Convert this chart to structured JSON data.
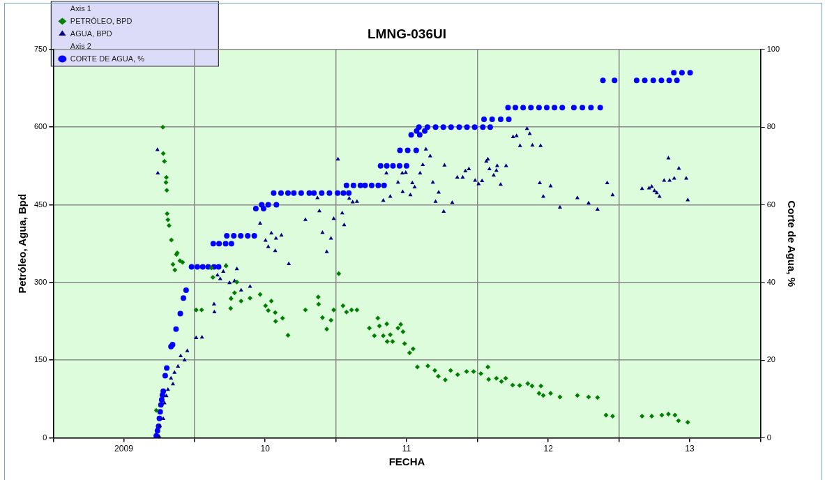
{
  "chart_data": {
    "type": "scatter",
    "title": "LMNG-036UI",
    "xlabel": "FECHA",
    "ylabel": "Petróleo, Agua, Bpd",
    "y2label": "Corte de Agua, %",
    "legend": "top left",
    "legend_title": [
      "Axis 1",
      "Axis 2"
    ],
    "grid": true,
    "xlim": [
      "2009-01-01",
      "2014-01-01"
    ],
    "xticks": [
      {
        "value": "2009-01-01",
        "label": null
      },
      {
        "value": "2009-07-02",
        "label": "2009"
      },
      {
        "value": "2010-01-01",
        "label": null
      },
      {
        "value": "2010-07-02",
        "label": "10"
      },
      {
        "value": "2011-01-01",
        "label": null
      },
      {
        "value": "2011-07-02",
        "label": "11"
      },
      {
        "value": "2012-01-01",
        "label": null
      },
      {
        "value": "2012-07-02",
        "label": "12"
      },
      {
        "value": "2013-01-01",
        "label": null
      },
      {
        "value": "2013-07-02",
        "label": "13"
      },
      {
        "value": "2014-01-01",
        "label": null
      }
    ],
    "ylim": [
      0,
      750
    ],
    "yticks": [
      0,
      150,
      300,
      450,
      600,
      750
    ],
    "y2lim": [
      0,
      100
    ],
    "y2ticks": [
      0,
      20,
      40,
      60,
      80,
      100
    ],
    "series": [
      {
        "name": "PETRÓLEO, BPD",
        "axis": "y",
        "marker": "diamond",
        "color": "#008000",
        "x": [
          "2009-09-24",
          "2009-10-11",
          "2009-10-12",
          "2009-10-15",
          "2009-10-19",
          "2009-10-20",
          "2009-10-21",
          "2009-10-22",
          "2009-10-24",
          "2009-10-27",
          "2009-11-02",
          "2009-11-06",
          "2009-11-11",
          "2009-11-15",
          "2009-11-17",
          "2009-11-24",
          "2009-12-01",
          "2010-01-05",
          "2010-01-19",
          "2010-02-13",
          "2010-02-17",
          "2010-03-23",
          "2010-04-04",
          "2010-04-05",
          "2010-04-14",
          "2010-04-20",
          "2010-05-01",
          "2010-05-24",
          "2010-06-19",
          "2010-07-03",
          "2010-07-10",
          "2010-07-18",
          "2010-07-28",
          "2010-07-29",
          "2010-08-16",
          "2010-08-30",
          "2010-10-14",
          "2010-11-16",
          "2010-11-17",
          "2010-11-27",
          "2010-12-08",
          "2010-12-19",
          "2010-12-26",
          "2011-01-08",
          "2011-01-19",
          "2011-01-28",
          "2011-02-10",
          "2011-02-24",
          "2011-03-28",
          "2011-04-10",
          "2011-04-19",
          "2011-04-23",
          "2011-05-03",
          "2011-05-12",
          "2011-05-13",
          "2011-05-21",
          "2011-05-27",
          "2011-06-10",
          "2011-06-17",
          "2011-06-23",
          "2011-06-27",
          "2011-07-10",
          "2011-07-19",
          "2011-07-30",
          "2011-08-26",
          "2011-09-13",
          "2011-09-22",
          "2011-10-10",
          "2011-10-24",
          "2011-11-11",
          "2011-12-04",
          "2011-12-22",
          "2012-01-10",
          "2012-01-28",
          "2012-01-30",
          "2012-02-19",
          "2012-03-03",
          "2012-03-14",
          "2012-04-01",
          "2012-04-19",
          "2012-05-10",
          "2012-05-21",
          "2012-06-08",
          "2012-06-13",
          "2012-06-19",
          "2012-07-08",
          "2012-08-01",
          "2012-09-15",
          "2012-10-14",
          "2012-11-06",
          "2012-11-28",
          "2012-12-15",
          "2013-03-01",
          "2013-03-26",
          "2013-04-21",
          "2013-05-08",
          "2013-05-25",
          "2013-06-03",
          "2013-06-27"
        ],
        "values": [
          53,
          600,
          549,
          534,
          493,
          503,
          478,
          433,
          421,
          410,
          382,
          335,
          324,
          354,
          357,
          342,
          339,
          247,
          247,
          328,
          310,
          332,
          250,
          269,
          280,
          301,
          264,
          270,
          277,
          255,
          246,
          264,
          242,
          225,
          231,
          198,
          247,
          272,
          258,
          232,
          210,
          227,
          247,
          317,
          255,
          243,
          247,
          247,
          212,
          197,
          231,
          216,
          197,
          220,
          186,
          199,
          186,
          212,
          219,
          205,
          182,
          164,
          172,
          137,
          139,
          130,
          119,
          112,
          130,
          122,
          128,
          128,
          124,
          137,
          113,
          115,
          109,
          115,
          102,
          101,
          105,
          100,
          86,
          100,
          82,
          86,
          79,
          82,
          79,
          78,
          44,
          42,
          42,
          42,
          44,
          46,
          44,
          33,
          30
        ]
      },
      {
        "name": "AGUA, BPD",
        "axis": "y",
        "marker": "triangle",
        "color": "#000080",
        "x": [
          "2009-09-27",
          "2009-09-28",
          "2009-10-01",
          "2009-10-03",
          "2009-10-12",
          "2009-10-15",
          "2009-10-20",
          "2009-10-24",
          "2009-11-01",
          "2009-11-06",
          "2009-11-10",
          "2009-11-19",
          "2009-11-26",
          "2009-12-06",
          "2009-12-13",
          "2010-01-05",
          "2010-01-20",
          "2010-02-20",
          "2010-02-21",
          "2010-03-01",
          "2010-03-08",
          "2010-03-16",
          "2010-03-23",
          "2010-04-01",
          "2010-04-05",
          "2010-04-14",
          "2010-04-20",
          "2010-05-01",
          "2010-05-24",
          "2010-06-19",
          "2010-07-03",
          "2010-07-10",
          "2010-07-18",
          "2010-07-28",
          "2010-07-30",
          "2010-08-13",
          "2010-09-01",
          "2010-10-14",
          "2010-11-14",
          "2010-11-19",
          "2010-11-27",
          "2010-12-08",
          "2010-12-19",
          "2010-12-26",
          "2011-01-06",
          "2011-01-17",
          "2011-01-22",
          "2011-02-04",
          "2011-02-13",
          "2011-02-24",
          "2011-05-03",
          "2011-05-11",
          "2011-05-21",
          "2011-06-10",
          "2011-06-21",
          "2011-06-22",
          "2011-06-30",
          "2011-07-12",
          "2011-07-17",
          "2011-07-23",
          "2011-08-06",
          "2011-08-13",
          "2011-08-21",
          "2011-09-01",
          "2011-09-08",
          "2011-09-15",
          "2011-09-23",
          "2011-10-06",
          "2011-10-08",
          "2011-10-28",
          "2011-11-10",
          "2011-11-24",
          "2011-12-01",
          "2011-12-10",
          "2011-12-26",
          "2012-01-04",
          "2012-01-13",
          "2012-01-24",
          "2012-01-28",
          "2012-02-01",
          "2012-02-12",
          "2012-02-19",
          "2012-02-21",
          "2012-03-01",
          "2012-03-15",
          "2012-04-02",
          "2012-04-11",
          "2012-04-20",
          "2012-05-08",
          "2012-05-15",
          "2012-05-22",
          "2012-06-10",
          "2012-06-12",
          "2012-06-19",
          "2012-07-08",
          "2012-08-01",
          "2012-09-15",
          "2012-10-14",
          "2012-11-06",
          "2012-12-01",
          "2012-12-15",
          "2013-03-01",
          "2013-03-19",
          "2013-03-26",
          "2013-04-02",
          "2013-04-08",
          "2013-04-15",
          "2013-04-27",
          "2013-05-08",
          "2013-05-11",
          "2013-05-23",
          "2013-06-04",
          "2013-06-23",
          "2013-06-27"
        ],
        "values": [
          556,
          511,
          3,
          23,
          37,
          67,
          81,
          93,
          115,
          104,
          126,
          138,
          158,
          150,
          168,
          193,
          194,
          258,
          243,
          314,
          307,
          321,
          333,
          299,
          270,
          303,
          326,
          285,
          292,
          414,
          381,
          369,
          395,
          361,
          385,
          391,
          336,
          421,
          463,
          438,
          396,
          359,
          385,
          423,
          538,
          434,
          411,
          462,
          455,
          456,
          458,
          511,
          466,
          493,
          511,
          475,
          512,
          469,
          492,
          484,
          511,
          527,
          557,
          544,
          493,
          456,
          474,
          437,
          526,
          454,
          503,
          503,
          515,
          519,
          497,
          490,
          496,
          534,
          538,
          519,
          507,
          516,
          525,
          489,
          525,
          581,
          583,
          564,
          597,
          587,
          565,
          492,
          564,
          466,
          486,
          445,
          463,
          453,
          441,
          492,
          469,
          481,
          482,
          485,
          477,
          473,
          466,
          497,
          540,
          497,
          501,
          520,
          501,
          459
        ]
      },
      {
        "name": "CORTE DE AGUA, %",
        "axis": "y2",
        "marker": "circle",
        "color": "#0000ff",
        "x": [
          "2009-09-24",
          "2009-09-27",
          "2009-09-30",
          "2009-10-02",
          "2009-10-04",
          "2009-10-06",
          "2009-10-08",
          "2009-10-10",
          "2009-10-12",
          "2009-10-17",
          "2009-10-21",
          "2009-11-01",
          "2009-11-05",
          "2009-11-14",
          "2009-11-25",
          "2009-12-03",
          "2009-12-10",
          "2009-12-24",
          "2010-01-08",
          "2010-01-22",
          "2010-02-05",
          "2010-02-20",
          "2010-03-04",
          "2010-02-18",
          "2010-03-05",
          "2010-03-22",
          "2010-04-06",
          "2010-03-25",
          "2010-04-12",
          "2010-04-30",
          "2010-05-18",
          "2010-06-04",
          "2010-06-08",
          "2010-06-28",
          "2010-06-23",
          "2010-07-10",
          "2010-07-31",
          "2010-07-24",
          "2010-08-12",
          "2010-08-30",
          "2010-09-14",
          "2010-10-03",
          "2010-10-24",
          "2010-11-05",
          "2010-11-25",
          "2010-12-15",
          "2011-01-05",
          "2011-01-20",
          "2011-02-03",
          "2011-01-28",
          "2011-02-15",
          "2011-03-05",
          "2011-03-17",
          "2011-04-03",
          "2011-04-20",
          "2011-05-05",
          "2011-04-26",
          "2011-05-12",
          "2011-05-28",
          "2011-06-14",
          "2011-07-02",
          "2011-06-15",
          "2011-07-05",
          "2011-07-27",
          "2011-07-14",
          "2011-08-05",
          "2011-07-28",
          "2011-08-18",
          "2011-08-03",
          "2011-08-25",
          "2011-09-15",
          "2011-10-05",
          "2011-10-25",
          "2011-11-15",
          "2011-12-05",
          "2011-12-25",
          "2012-01-15",
          "2012-02-03",
          "2012-01-18",
          "2012-02-08",
          "2012-03-01",
          "2012-03-22",
          "2012-03-20",
          "2012-04-08",
          "2012-04-28",
          "2012-05-18",
          "2012-06-08",
          "2012-06-28",
          "2012-07-18",
          "2012-08-07",
          "2012-09-06",
          "2012-09-28",
          "2012-10-20",
          "2012-11-13",
          "2012-11-20",
          "2012-12-20",
          "2013-02-15",
          "2013-03-08",
          "2013-03-30",
          "2013-04-20",
          "2013-05-10",
          "2013-05-30",
          "2013-05-22",
          "2013-06-12",
          "2013-07-03"
        ],
        "values": [
          0.5,
          1.8,
          3,
          5,
          6.7,
          8.5,
          9.8,
          11,
          12,
          16,
          18,
          23.5,
          24,
          28,
          32,
          36,
          38,
          44,
          44,
          44,
          44,
          44,
          44,
          50,
          50,
          50,
          50,
          52,
          52,
          52,
          52,
          52,
          59,
          59,
          60,
          60,
          60,
          63,
          63,
          63,
          63,
          63,
          63,
          63,
          63,
          63,
          63,
          63,
          63,
          65,
          65,
          65,
          65,
          65,
          65,
          65,
          70,
          70,
          70,
          70,
          70,
          74,
          74,
          74,
          78,
          78,
          79,
          79,
          80,
          80,
          80,
          80,
          80,
          80,
          80,
          80,
          80,
          80,
          82,
          82,
          82,
          82,
          85,
          85,
          85,
          85,
          85,
          85,
          85,
          85,
          85,
          85,
          85,
          85,
          92,
          92,
          92,
          92,
          92,
          92,
          92,
          92,
          94,
          94,
          94
        ]
      }
    ]
  }
}
